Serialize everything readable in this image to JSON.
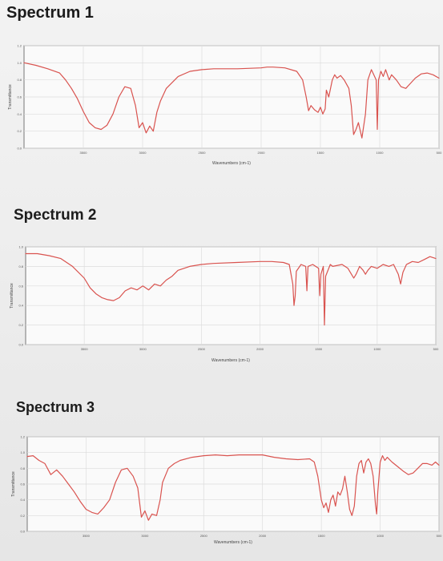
{
  "chart_data": [
    {
      "type": "line",
      "title": "Spectrum 1",
      "xlabel": "Wavenumbers (cm-1)",
      "ylabel": "Transmittance",
      "xlim": [
        4000,
        500
      ],
      "ylim": [
        0.0,
        1.2
      ],
      "xticks": [
        3500,
        3000,
        2500,
        2000,
        1500,
        1000,
        500
      ],
      "xtick_labels": [
        "3500",
        "3000",
        "2500",
        "2000",
        "1500",
        "1000",
        "500"
      ],
      "yticks": [
        0.0,
        0.2,
        0.4,
        0.6,
        0.8,
        1.0,
        1.2
      ],
      "ytick_labels": [
        "0.0",
        "0.2",
        "0.4",
        "0.6",
        "0.8",
        "1.0",
        "1.2"
      ],
      "grid": true,
      "color": "#d9534f",
      "points": [
        [
          4000,
          1.0
        ],
        [
          3900,
          0.97
        ],
        [
          3800,
          0.93
        ],
        [
          3700,
          0.88
        ],
        [
          3650,
          0.8
        ],
        [
          3600,
          0.7
        ],
        [
          3550,
          0.58
        ],
        [
          3500,
          0.43
        ],
        [
          3450,
          0.3
        ],
        [
          3400,
          0.24
        ],
        [
          3350,
          0.22
        ],
        [
          3300,
          0.27
        ],
        [
          3250,
          0.4
        ],
        [
          3200,
          0.6
        ],
        [
          3150,
          0.72
        ],
        [
          3100,
          0.7
        ],
        [
          3060,
          0.5
        ],
        [
          3030,
          0.24
        ],
        [
          3000,
          0.3
        ],
        [
          2970,
          0.18
        ],
        [
          2940,
          0.26
        ],
        [
          2910,
          0.2
        ],
        [
          2880,
          0.42
        ],
        [
          2850,
          0.55
        ],
        [
          2800,
          0.7
        ],
        [
          2700,
          0.84
        ],
        [
          2600,
          0.9
        ],
        [
          2500,
          0.92
        ],
        [
          2400,
          0.93
        ],
        [
          2200,
          0.93
        ],
        [
          2000,
          0.94
        ],
        [
          1950,
          0.95
        ],
        [
          1900,
          0.95
        ],
        [
          1800,
          0.94
        ],
        [
          1700,
          0.9
        ],
        [
          1650,
          0.8
        ],
        [
          1620,
          0.6
        ],
        [
          1600,
          0.44
        ],
        [
          1580,
          0.5
        ],
        [
          1550,
          0.45
        ],
        [
          1520,
          0.42
        ],
        [
          1500,
          0.48
        ],
        [
          1480,
          0.4
        ],
        [
          1460,
          0.46
        ],
        [
          1450,
          0.68
        ],
        [
          1430,
          0.6
        ],
        [
          1400,
          0.8
        ],
        [
          1380,
          0.86
        ],
        [
          1360,
          0.82
        ],
        [
          1330,
          0.85
        ],
        [
          1300,
          0.8
        ],
        [
          1260,
          0.7
        ],
        [
          1240,
          0.5
        ],
        [
          1220,
          0.16
        ],
        [
          1200,
          0.22
        ],
        [
          1180,
          0.3
        ],
        [
          1150,
          0.12
        ],
        [
          1120,
          0.4
        ],
        [
          1100,
          0.8
        ],
        [
          1070,
          0.92
        ],
        [
          1050,
          0.86
        ],
        [
          1030,
          0.8
        ],
        [
          1020,
          0.22
        ],
        [
          1010,
          0.8
        ],
        [
          990,
          0.9
        ],
        [
          970,
          0.84
        ],
        [
          950,
          0.92
        ],
        [
          920,
          0.8
        ],
        [
          900,
          0.86
        ],
        [
          860,
          0.8
        ],
        [
          820,
          0.72
        ],
        [
          780,
          0.7
        ],
        [
          740,
          0.76
        ],
        [
          700,
          0.82
        ],
        [
          650,
          0.87
        ],
        [
          600,
          0.88
        ],
        [
          550,
          0.86
        ],
        [
          500,
          0.82
        ]
      ]
    },
    {
      "type": "line",
      "title": "Spectrum 2",
      "xlabel": "Wavenumbers (cm-1)",
      "ylabel": "Transmittance",
      "xlim": [
        4000,
        500
      ],
      "ylim": [
        0.0,
        1.0
      ],
      "xticks": [
        3500,
        3000,
        2500,
        2000,
        1500,
        1000,
        500
      ],
      "xtick_labels": [
        "3500",
        "3000",
        "2500",
        "2000",
        "1500",
        "1000",
        "500"
      ],
      "yticks": [
        0.0,
        0.2,
        0.4,
        0.6,
        0.8,
        1.0
      ],
      "ytick_labels": [
        "0.0",
        "0.2",
        "0.4",
        "0.6",
        "0.8",
        "1.0"
      ],
      "grid": true,
      "color": "#d9534f",
      "points": [
        [
          4000,
          0.93
        ],
        [
          3900,
          0.93
        ],
        [
          3800,
          0.91
        ],
        [
          3700,
          0.88
        ],
        [
          3600,
          0.8
        ],
        [
          3500,
          0.68
        ],
        [
          3450,
          0.58
        ],
        [
          3400,
          0.52
        ],
        [
          3350,
          0.48
        ],
        [
          3300,
          0.46
        ],
        [
          3250,
          0.45
        ],
        [
          3200,
          0.48
        ],
        [
          3150,
          0.55
        ],
        [
          3100,
          0.58
        ],
        [
          3050,
          0.56
        ],
        [
          3000,
          0.6
        ],
        [
          2950,
          0.56
        ],
        [
          2900,
          0.62
        ],
        [
          2850,
          0.6
        ],
        [
          2800,
          0.66
        ],
        [
          2750,
          0.7
        ],
        [
          2700,
          0.76
        ],
        [
          2600,
          0.8
        ],
        [
          2500,
          0.82
        ],
        [
          2400,
          0.83
        ],
        [
          2200,
          0.84
        ],
        [
          2000,
          0.85
        ],
        [
          1900,
          0.85
        ],
        [
          1800,
          0.84
        ],
        [
          1750,
          0.82
        ],
        [
          1720,
          0.62
        ],
        [
          1710,
          0.4
        ],
        [
          1700,
          0.5
        ],
        [
          1690,
          0.75
        ],
        [
          1650,
          0.82
        ],
        [
          1610,
          0.8
        ],
        [
          1600,
          0.55
        ],
        [
          1590,
          0.8
        ],
        [
          1550,
          0.82
        ],
        [
          1500,
          0.78
        ],
        [
          1490,
          0.5
        ],
        [
          1480,
          0.72
        ],
        [
          1460,
          0.8
        ],
        [
          1450,
          0.2
        ],
        [
          1440,
          0.7
        ],
        [
          1400,
          0.82
        ],
        [
          1380,
          0.8
        ],
        [
          1300,
          0.82
        ],
        [
          1250,
          0.78
        ],
        [
          1220,
          0.72
        ],
        [
          1200,
          0.68
        ],
        [
          1180,
          0.72
        ],
        [
          1150,
          0.8
        ],
        [
          1120,
          0.76
        ],
        [
          1100,
          0.72
        ],
        [
          1080,
          0.76
        ],
        [
          1050,
          0.8
        ],
        [
          1000,
          0.78
        ],
        [
          950,
          0.82
        ],
        [
          900,
          0.8
        ],
        [
          860,
          0.82
        ],
        [
          820,
          0.72
        ],
        [
          800,
          0.62
        ],
        [
          780,
          0.74
        ],
        [
          750,
          0.82
        ],
        [
          700,
          0.85
        ],
        [
          650,
          0.84
        ],
        [
          600,
          0.87
        ],
        [
          550,
          0.9
        ],
        [
          500,
          0.88
        ]
      ]
    },
    {
      "type": "line",
      "title": "Spectrum 3",
      "xlabel": "Wavenumbers (cm-1)",
      "ylabel": "Transmittance",
      "xlim": [
        4000,
        500
      ],
      "ylim": [
        0.0,
        1.2
      ],
      "xticks": [
        3500,
        3000,
        2500,
        2000,
        1500,
        1000,
        500
      ],
      "xtick_labels": [
        "3500",
        "3000",
        "2500",
        "2000",
        "1500",
        "1000",
        "500"
      ],
      "yticks": [
        0.0,
        0.2,
        0.4,
        0.6,
        0.8,
        1.0,
        1.2
      ],
      "ytick_labels": [
        "0.0",
        "0.2",
        "0.4",
        "0.6",
        "0.8",
        "1.0",
        "1.2"
      ],
      "grid": true,
      "color": "#d9534f",
      "points": [
        [
          4000,
          0.95
        ],
        [
          3950,
          0.96
        ],
        [
          3900,
          0.9
        ],
        [
          3850,
          0.86
        ],
        [
          3800,
          0.72
        ],
        [
          3750,
          0.78
        ],
        [
          3700,
          0.7
        ],
        [
          3650,
          0.6
        ],
        [
          3600,
          0.5
        ],
        [
          3550,
          0.38
        ],
        [
          3500,
          0.28
        ],
        [
          3450,
          0.24
        ],
        [
          3400,
          0.22
        ],
        [
          3350,
          0.3
        ],
        [
          3300,
          0.4
        ],
        [
          3250,
          0.62
        ],
        [
          3200,
          0.78
        ],
        [
          3150,
          0.8
        ],
        [
          3100,
          0.7
        ],
        [
          3060,
          0.55
        ],
        [
          3030,
          0.18
        ],
        [
          3000,
          0.26
        ],
        [
          2970,
          0.14
        ],
        [
          2940,
          0.22
        ],
        [
          2900,
          0.2
        ],
        [
          2870,
          0.4
        ],
        [
          2850,
          0.62
        ],
        [
          2800,
          0.8
        ],
        [
          2750,
          0.86
        ],
        [
          2700,
          0.9
        ],
        [
          2600,
          0.94
        ],
        [
          2500,
          0.96
        ],
        [
          2400,
          0.97
        ],
        [
          2300,
          0.96
        ],
        [
          2200,
          0.97
        ],
        [
          2000,
          0.97
        ],
        [
          1900,
          0.94
        ],
        [
          1800,
          0.92
        ],
        [
          1700,
          0.91
        ],
        [
          1600,
          0.92
        ],
        [
          1560,
          0.88
        ],
        [
          1530,
          0.7
        ],
        [
          1500,
          0.4
        ],
        [
          1480,
          0.3
        ],
        [
          1460,
          0.36
        ],
        [
          1440,
          0.24
        ],
        [
          1420,
          0.4
        ],
        [
          1400,
          0.46
        ],
        [
          1380,
          0.32
        ],
        [
          1360,
          0.5
        ],
        [
          1340,
          0.46
        ],
        [
          1320,
          0.54
        ],
        [
          1300,
          0.7
        ],
        [
          1280,
          0.5
        ],
        [
          1260,
          0.28
        ],
        [
          1240,
          0.2
        ],
        [
          1220,
          0.32
        ],
        [
          1200,
          0.7
        ],
        [
          1180,
          0.86
        ],
        [
          1160,
          0.9
        ],
        [
          1140,
          0.74
        ],
        [
          1120,
          0.88
        ],
        [
          1100,
          0.92
        ],
        [
          1080,
          0.86
        ],
        [
          1060,
          0.7
        ],
        [
          1040,
          0.34
        ],
        [
          1030,
          0.22
        ],
        [
          1020,
          0.5
        ],
        [
          1000,
          0.88
        ],
        [
          980,
          0.96
        ],
        [
          960,
          0.9
        ],
        [
          940,
          0.94
        ],
        [
          900,
          0.88
        ],
        [
          850,
          0.82
        ],
        [
          800,
          0.76
        ],
        [
          760,
          0.72
        ],
        [
          720,
          0.74
        ],
        [
          680,
          0.8
        ],
        [
          640,
          0.86
        ],
        [
          600,
          0.86
        ],
        [
          560,
          0.84
        ],
        [
          530,
          0.88
        ],
        [
          500,
          0.84
        ]
      ]
    }
  ]
}
